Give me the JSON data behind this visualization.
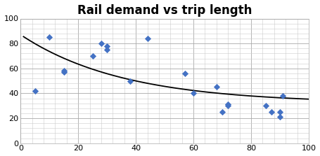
{
  "title": "Rail demand vs trip length",
  "scatter_points": [
    [
      5,
      42
    ],
    [
      10,
      85
    ],
    [
      15,
      57
    ],
    [
      15,
      58
    ],
    [
      25,
      70
    ],
    [
      28,
      80
    ],
    [
      30,
      78
    ],
    [
      30,
      75
    ],
    [
      38,
      50
    ],
    [
      44,
      84
    ],
    [
      57,
      56
    ],
    [
      60,
      40
    ],
    [
      68,
      45
    ],
    [
      70,
      25
    ],
    [
      72,
      30
    ],
    [
      72,
      31
    ],
    [
      85,
      30
    ],
    [
      87,
      25
    ],
    [
      90,
      21
    ],
    [
      90,
      25
    ],
    [
      91,
      38
    ]
  ],
  "scatter_color": "#4472C4",
  "scatter_marker": "D",
  "scatter_size": 22,
  "curve_color": "black",
  "curve_lw": 1.3,
  "xlim": [
    0,
    100
  ],
  "ylim": [
    0,
    100
  ],
  "xticks_major": [
    0,
    20,
    40,
    60,
    80,
    100
  ],
  "yticks_major": [
    0,
    20,
    40,
    60,
    80,
    100
  ],
  "xtick_minor_step": 4,
  "ytick_minor_step": 4,
  "grid_major_color": "#AAAAAA",
  "grid_minor_color": "#CCCCCC",
  "grid_major_lw": 0.6,
  "grid_minor_lw": 0.4,
  "title_fontsize": 12,
  "tick_labelsize": 8,
  "bg_color": "#FFFFFF",
  "plot_bg_color": "#FFFFFF",
  "curve_a": 55,
  "curve_b": 0.028,
  "curve_c": 32
}
